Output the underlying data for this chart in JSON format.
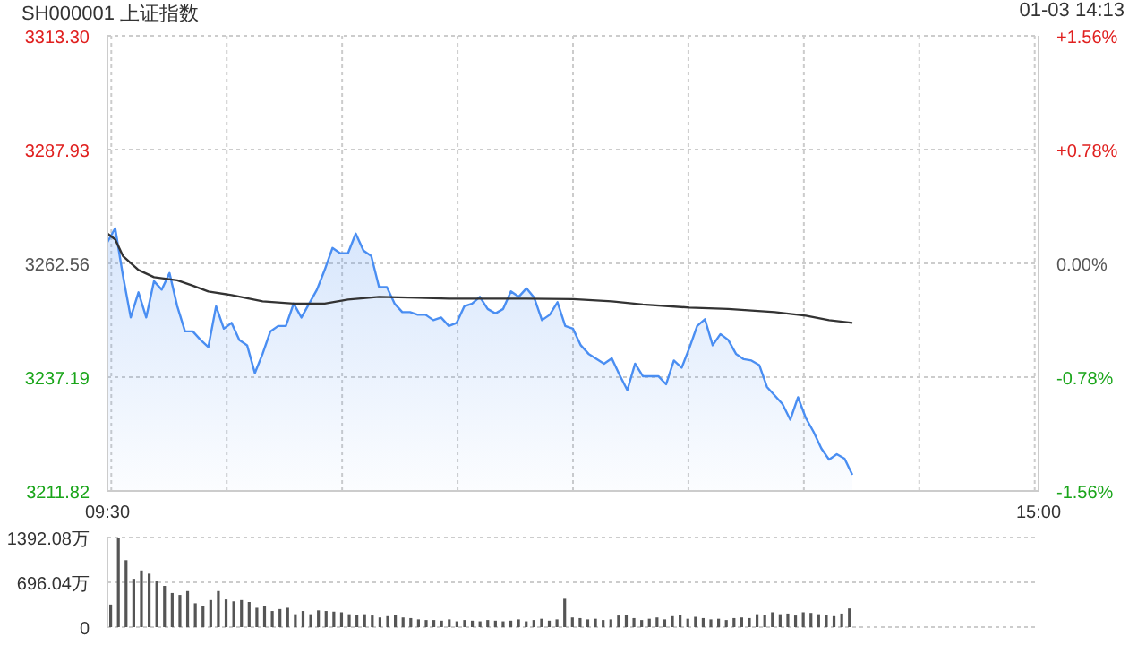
{
  "chart_data": [
    {
      "type": "area",
      "title": "SH000001 上证指数",
      "subtitle": "01-03 14:13",
      "categories": [
        "09:30",
        null,
        null,
        null,
        null,
        null,
        null,
        null,
        null,
        null,
        null,
        null,
        null,
        null,
        null,
        null,
        null,
        null,
        null,
        null,
        null,
        null,
        null,
        null,
        null,
        null,
        null,
        null,
        null,
        null,
        null,
        null,
        null,
        null,
        null,
        null,
        null,
        null,
        null,
        null,
        null,
        null,
        null,
        null,
        null,
        null,
        null,
        null,
        null,
        null,
        null,
        null,
        null,
        null,
        null,
        null,
        null,
        null,
        null,
        null,
        null,
        null,
        null,
        null,
        null,
        null,
        null,
        null,
        null,
        null,
        null,
        null,
        null,
        null,
        null,
        null,
        null,
        null,
        null,
        null,
        null,
        null,
        null,
        null,
        null,
        null,
        null,
        null,
        null,
        null,
        null,
        null,
        null,
        null,
        null,
        null,
        null,
        null,
        null,
        null,
        null,
        null,
        null,
        null,
        null,
        null,
        null,
        null,
        null,
        null,
        null,
        null,
        null,
        null,
        null,
        null,
        null,
        null,
        null,
        null,
        "15:00"
      ],
      "ylim": [
        3211.82,
        3313.3
      ],
      "yticks": [
        3211.82,
        3237.19,
        3262.56,
        3287.93,
        {
          "value": 3313.3,
          "label": "3313.30"
        }
      ],
      "y2lim": [
        -1.56,
        1.56
      ],
      "y2ticks": [
        {
          "value": -1.56,
          "label": "-1.56%"
        },
        {
          "value": -0.78,
          "label": "-0.78%"
        },
        {
          "value": 0,
          "label": "0.00%"
        },
        {
          "value": 0.78,
          "label": "+0.78%"
        },
        {
          "value": 1.56,
          "label": "+1.56%"
        }
      ],
      "grid": true,
      "series": [
        {
          "color": "#4a8ef2",
          "values": [
            3267.3,
            3270.4,
            3259.8,
            3250.5,
            3256.1,
            3250.5,
            3258.6,
            3256.7,
            3260.4,
            3253,
            3247.4,
            3247.4,
            3245.5,
            3243.9,
            3253,
            3248,
            3249.3,
            3245.5,
            3244.3,
            3238.1,
            3242.4,
            3247.4,
            3248.6,
            3248.6,
            3253.6,
            3250.5,
            3253.6,
            3256.7,
            3261.1,
            3266,
            3264.8,
            3264.8,
            3269.2,
            3265.4,
            3264.2,
            3257.3,
            3257.3,
            3253.6,
            3251.7,
            3251.7,
            3251.1,
            3251.1,
            3249.9,
            3250.5,
            3248.6,
            3249.3,
            3253,
            3253.6,
            3255.1,
            3252.4,
            3251.4,
            3252.4,
            3256.3,
            3255.1,
            3257,
            3254.9,
            3249.9,
            3251.1,
            3253.9,
            3248.6,
            3248,
            3244.3,
            3242.4,
            null,
            3240.2,
            3241.4,
            3237.7,
            3234.3,
            3240.2,
            3237.4,
            null,
            3237.4,
            3235.6,
            3240.9,
            3239.3,
            3243.7,
            3248.6,
            3250.1,
            3244.3,
            3246.8,
            3245.5,
            3242.4,
            3241.2,
            3240.9,
            3239.9,
            3235,
            3233.1,
            3231.2,
            3227.7,
            3232.7,
            3228.1,
            3225,
            3221.3,
            3218.8,
            3220,
            3219,
            3215.4,
            null,
            null,
            null,
            null,
            null,
            null,
            null,
            null,
            null,
            null,
            null,
            null,
            null,
            null,
            null,
            null,
            null,
            null,
            null,
            null,
            null,
            null,
            null,
            null
          ]
        },
        {
          "type": "line",
          "color": "#333333",
          "values": [
            3269.2,
            3267.9,
            3264.2,
            null,
            3261.1,
            null,
            3259.5,
            null,
            null,
            3258.8,
            null,
            3257.6,
            null,
            3256.3,
            null,
            null,
            3255.5,
            null,
            null,
            null,
            3254.1,
            null,
            null,
            null,
            3253.6,
            null,
            null,
            null,
            3253.6,
            null,
            null,
            3254.5,
            null,
            null,
            null,
            3255.1,
            null,
            null,
            null,
            null,
            3254.9,
            null,
            null,
            null,
            3254.7,
            null,
            null,
            null,
            3254.7,
            null,
            null,
            null,
            null,
            null,
            3254.7,
            null,
            null,
            null,
            null,
            null,
            3254.6,
            null,
            null,
            null,
            null,
            3254.1,
            null,
            null,
            null,
            3253.4,
            null,
            null,
            null,
            null,
            null,
            3252.7,
            null,
            null,
            null,
            null,
            3252.4,
            null,
            null,
            null,
            null,
            null,
            3251.7,
            null,
            null,
            null,
            3250.9,
            null,
            null,
            3249.9,
            null,
            null,
            3249.3,
            null,
            null,
            null,
            null,
            null,
            null,
            null,
            null,
            null,
            null,
            null,
            null,
            null,
            null,
            null,
            null,
            null,
            null,
            null,
            null,
            null,
            null,
            null,
            null
          ]
        }
      ]
    },
    {
      "type": "bar",
      "color": "#555555",
      "ylim": [
        0,
        1392.08
      ],
      "yticks": [
        0,
        {
          "value": 696.04,
          "label": "696.04万"
        },
        {
          "value": 1392.08,
          "label": "1392.08万"
        }
      ],
      "grid": "y",
      "tick_labels": "y",
      "categories": [
        null,
        null,
        null,
        null,
        null,
        null,
        null,
        null,
        null,
        null,
        null,
        null,
        null,
        null,
        null,
        null,
        null,
        null,
        null,
        null,
        null,
        null,
        null,
        null,
        null,
        null,
        null,
        null,
        null,
        null,
        null,
        null,
        null,
        null,
        null,
        null,
        null,
        null,
        null,
        null,
        null,
        null,
        null,
        null,
        null,
        null,
        null,
        null,
        null,
        null,
        null,
        null,
        null,
        null,
        null,
        null,
        null,
        null,
        null,
        null,
        null,
        null,
        null,
        null,
        null,
        null,
        null,
        null,
        null,
        null,
        null,
        null,
        null,
        null,
        null,
        null,
        null,
        null,
        null,
        null,
        null,
        null,
        null,
        null,
        null,
        null,
        null,
        null,
        null,
        null,
        null,
        null,
        null,
        null,
        null,
        null,
        null,
        null,
        null,
        null,
        null,
        null,
        null,
        null,
        null,
        null,
        null,
        null,
        null,
        null,
        null,
        null,
        null,
        null,
        null,
        null,
        null,
        null,
        null,
        null,
        null
      ],
      "values": [
        350,
        1390,
        1040,
        750,
        880,
        830,
        720,
        640,
        530,
        500,
        560,
        370,
        330,
        420,
        560,
        430,
        400,
        420,
        390,
        300,
        330,
        250,
        280,
        300,
        200,
        250,
        200,
        260,
        250,
        240,
        230,
        200,
        190,
        200,
        180,
        150,
        170,
        190,
        150,
        140,
        120,
        110,
        110,
        100,
        120,
        90,
        110,
        100,
        90,
        110,
        100,
        90,
        100,
        120,
        90,
        110,
        130,
        100,
        120,
        440,
        150,
        140,
        120,
        130,
        110,
        120,
        180,
        190,
        140,
        110,
        130,
        150,
        120,
        170,
        190,
        130,
        160,
        140,
        120,
        130,
        110,
        140,
        150,
        140,
        200,
        190,
        230,
        200,
        210,
        180,
        230,
        220,
        200,
        190,
        170,
        210,
        290,
        null,
        null,
        null,
        null,
        null,
        null,
        null,
        null,
        null,
        null,
        null,
        null,
        null,
        null,
        null,
        null,
        null,
        null,
        null,
        null,
        null,
        null,
        null,
        null
      ]
    }
  ]
}
